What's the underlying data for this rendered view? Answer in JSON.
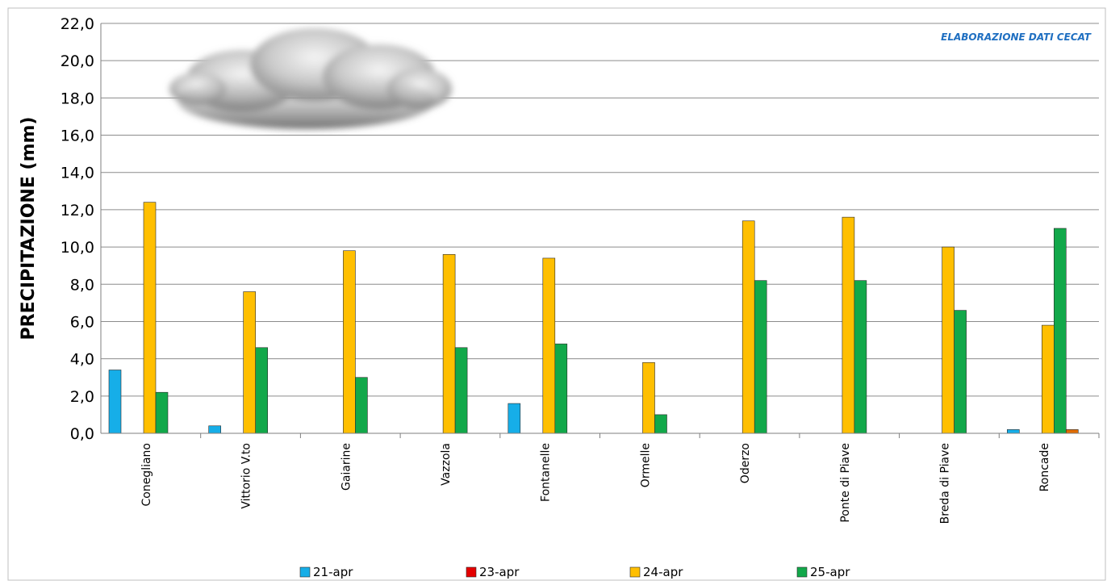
{
  "chart_data": {
    "type": "bar",
    "title": "",
    "xlabel": "",
    "ylabel": "PRECIPITAZIONE (mm)",
    "ylim": [
      0,
      22
    ],
    "ytick_step": 2,
    "yticks": [
      "0,0",
      "2,0",
      "4,0",
      "6,0",
      "8,0",
      "10,0",
      "12,0",
      "14,0",
      "16,0",
      "18,0",
      "20,0",
      "22,0"
    ],
    "grid": true,
    "legend_position": "bottom",
    "annotation": "ELABORAZIONE DATI CECAT",
    "categories": [
      "Conegliano",
      "Vittorio V.to",
      "Gaiarine",
      "Vazzola",
      "Fontanelle",
      "Ormelle",
      "Oderzo",
      "Ponte di Piave",
      "Breda di Piave",
      "Roncade"
    ],
    "series": [
      {
        "name": "21-apr",
        "color": "#16aee8",
        "values": [
          3.4,
          0.4,
          0,
          0,
          1.6,
          0,
          0,
          0,
          0,
          0.2
        ]
      },
      {
        "name": "23-apr",
        "color": "#e50000",
        "values": [
          0,
          0,
          0,
          0,
          0,
          0,
          0,
          0,
          0,
          0
        ]
      },
      {
        "name": "24-apr",
        "color": "#ffbf00",
        "values": [
          12.4,
          7.6,
          9.8,
          9.6,
          9.4,
          3.8,
          11.4,
          11.6,
          10.0,
          5.8
        ]
      },
      {
        "name": "25-apr",
        "color": "#12a84a",
        "values": [
          2.2,
          4.6,
          3.0,
          4.6,
          4.8,
          1.0,
          8.2,
          8.2,
          6.6,
          11.0
        ]
      },
      {
        "name": "",
        "color": "#e06c00",
        "values": [
          0,
          0,
          0,
          0,
          0,
          0,
          0,
          0,
          0,
          0.2
        ]
      }
    ],
    "colors": {
      "annotation": "#1f6fc1",
      "grid": "#8c8c8c",
      "axis": "#7f7f7f"
    },
    "decoration": "cloud-icon"
  }
}
